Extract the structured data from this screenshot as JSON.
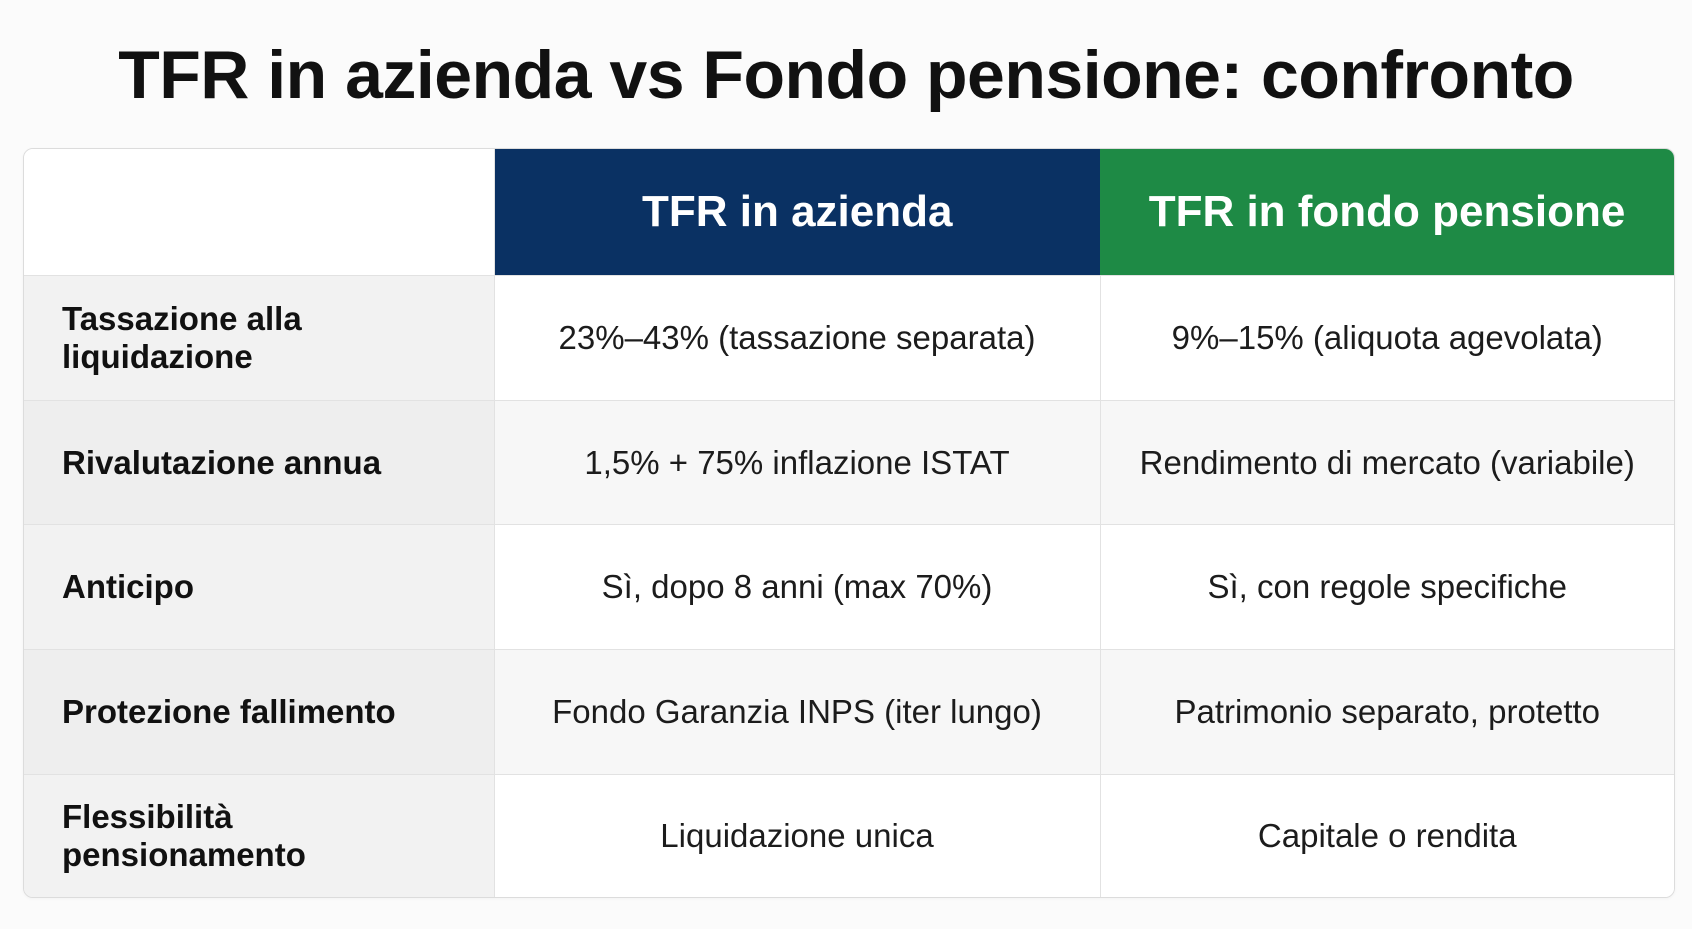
{
  "title": "TFR in azienda vs Fondo pensione: confronto",
  "colors": {
    "azienda_header": "#0a3163",
    "fondo_header": "#1e8a45"
  },
  "table": {
    "headers": {
      "corner": "",
      "azienda": "TFR in azienda",
      "fondo": "TFR in fondo pensione"
    },
    "rows": [
      {
        "label": "Tassazione alla liquidazione",
        "azienda": "23%–43% (tassazione separata)",
        "fondo": "9%–15% (aliquota agevolata)"
      },
      {
        "label": "Rivalutazione annua",
        "azienda": "1,5% + 75% inflazione ISTAT",
        "fondo": "Rendimento di mercato (variabile)"
      },
      {
        "label": "Anticipo",
        "azienda": "Sì, dopo 8 anni (max 70%)",
        "fondo": "Sì, con regole specifiche"
      },
      {
        "label": "Protezione fallimento",
        "azienda": "Fondo Garanzia INPS (iter lungo)",
        "fondo": "Patrimonio separato, protetto"
      },
      {
        "label": "Flessibilità pensionamento",
        "azienda": "Liquidazione unica",
        "fondo": "Capitale o rendita"
      }
    ]
  }
}
